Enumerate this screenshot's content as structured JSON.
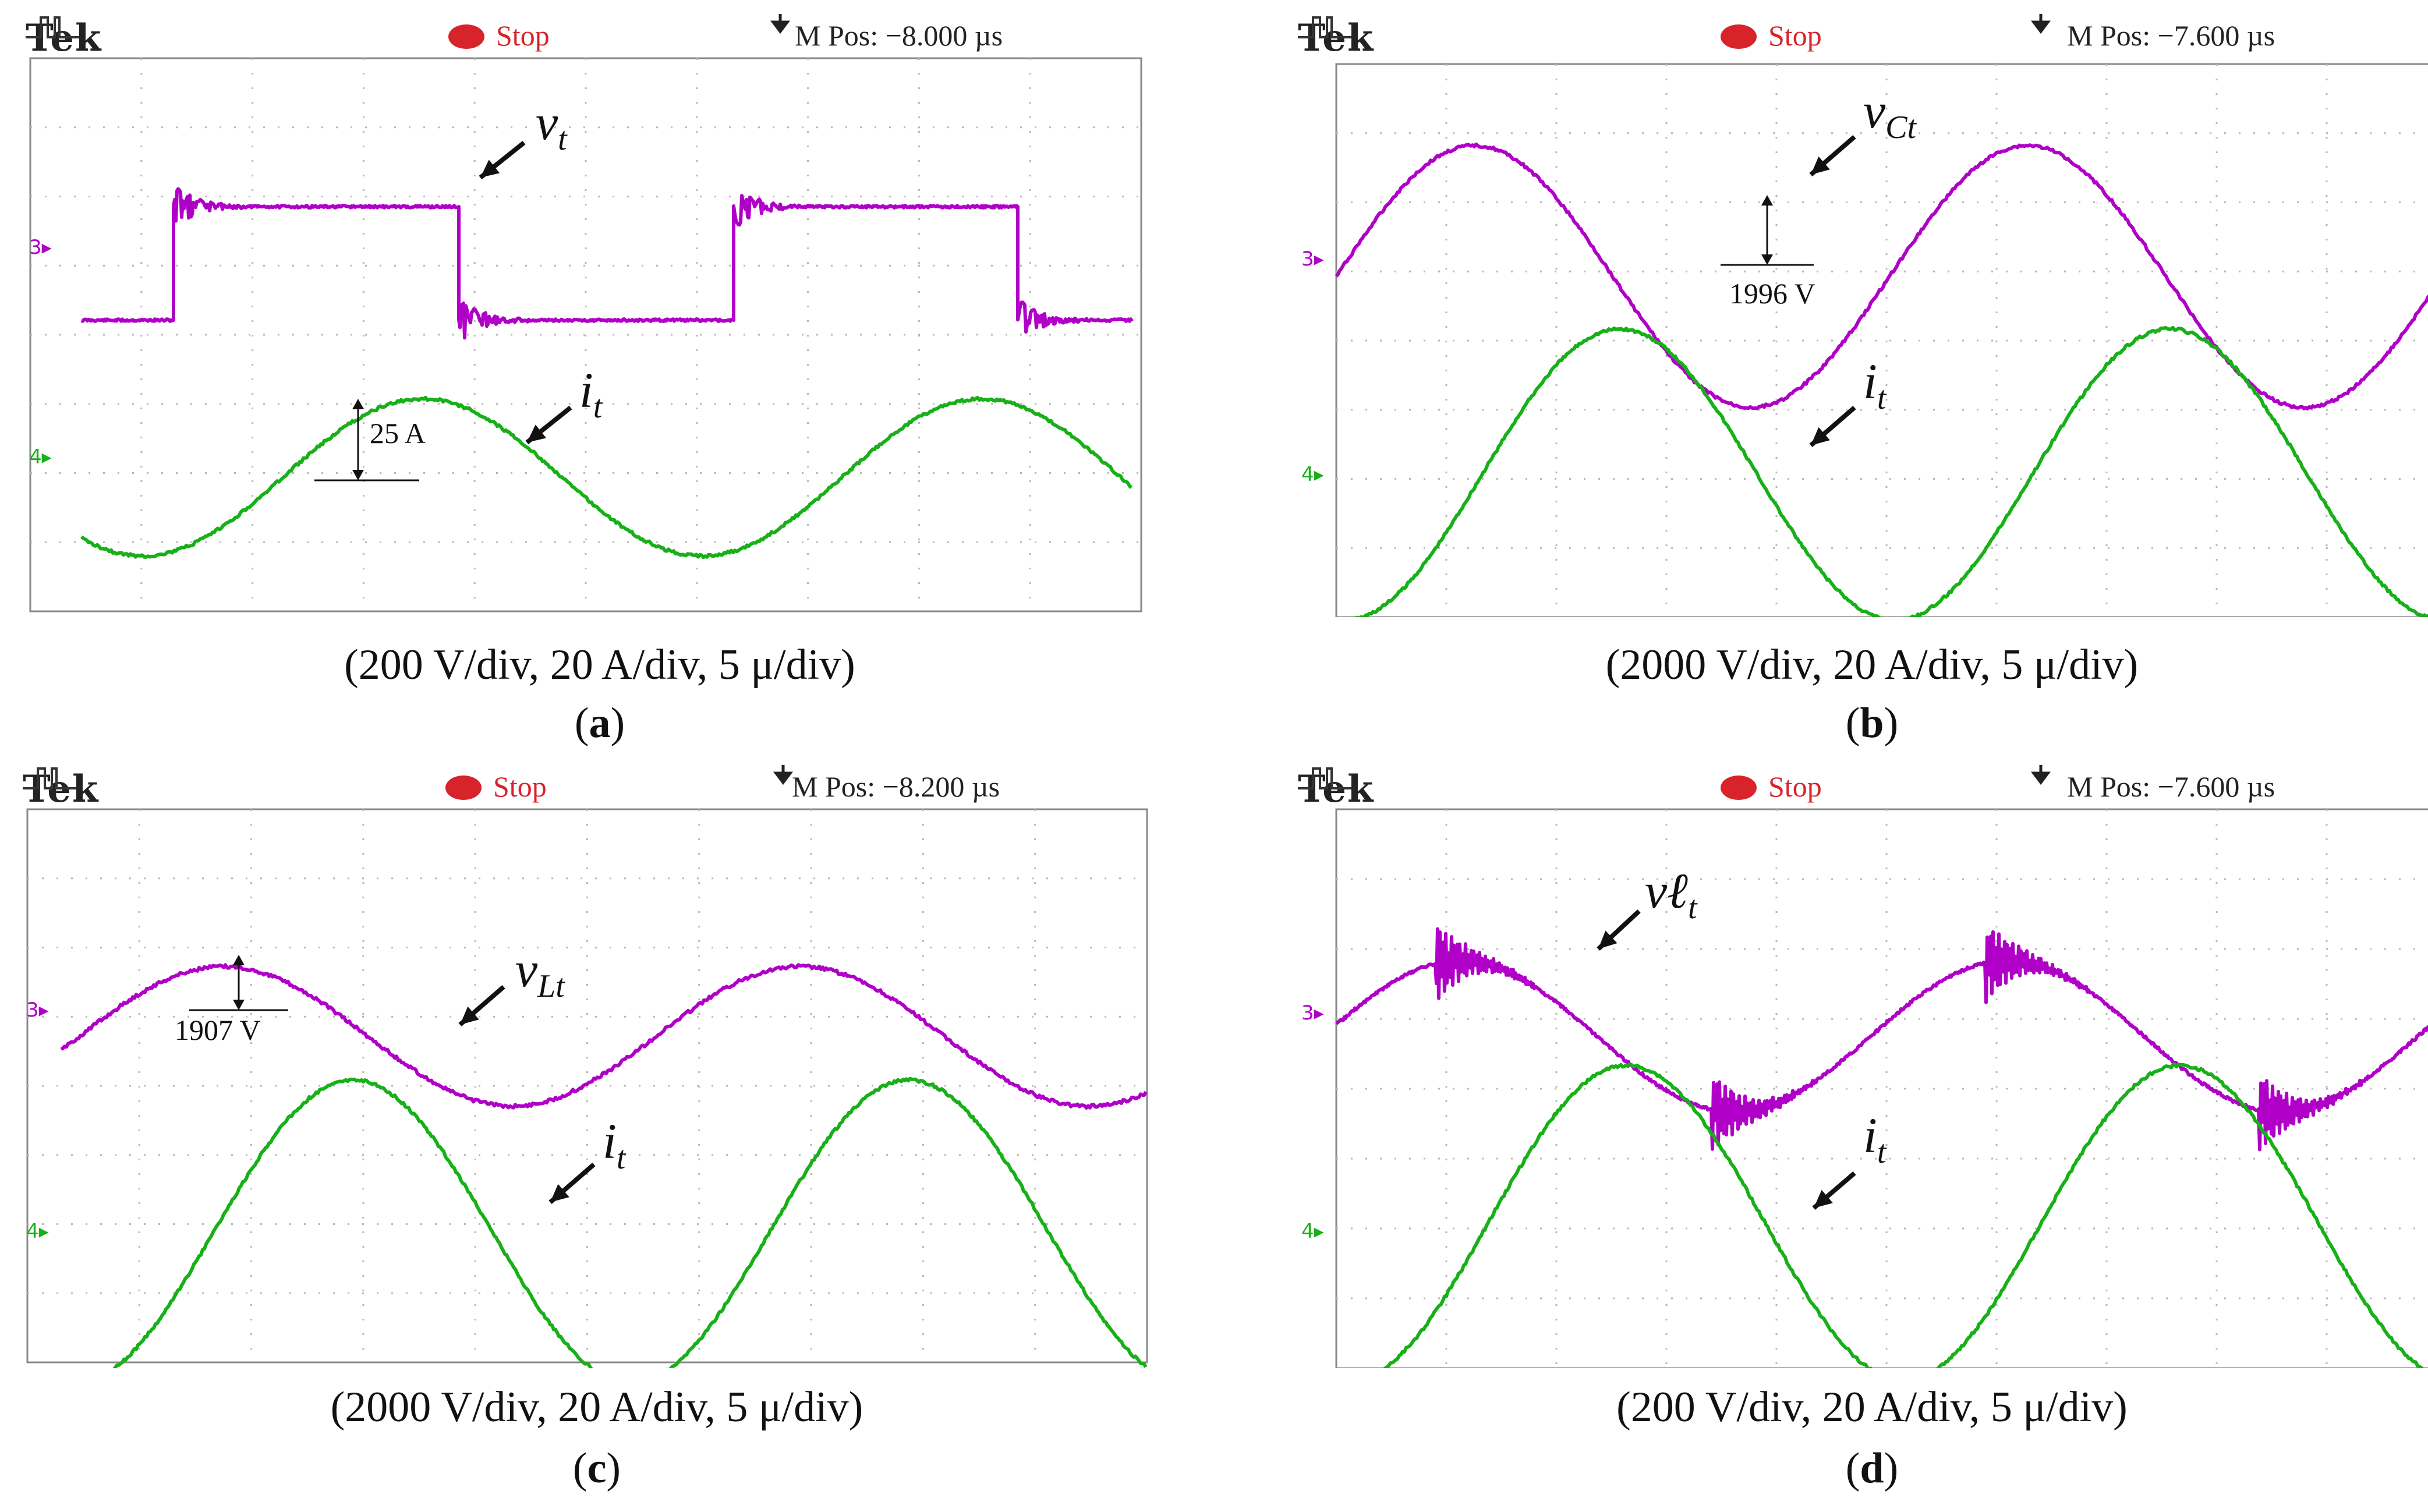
{
  "header": {
    "brand": "Tek",
    "status": "Stop"
  },
  "panels": [
    {
      "id": "a",
      "m_pos": "M Pos: −8.000 µs",
      "ch3_marker": "3▸",
      "ch4_marker": "4▸",
      "voltage_label": "v",
      "voltage_subscript": "t",
      "current_label": "i",
      "current_subscript": "t",
      "annotation": "25 A",
      "caption": "(200 V/div, 20 A/div, 5 μ/div)",
      "sublabel": "a"
    },
    {
      "id": "b",
      "m_pos": "M Pos: −7.600 µs",
      "ch3_marker": "3▸",
      "ch4_marker": "4▸",
      "voltage_label": "v",
      "voltage_subscript": "Ct",
      "current_label": "i",
      "current_subscript": "t",
      "annotation": "1996 V",
      "caption": "(2000 V/div, 20 A/div, 5 μ/div)",
      "sublabel": "b"
    },
    {
      "id": "c",
      "m_pos": "M Pos: −8.200 µs",
      "ch3_marker": "3▸",
      "ch4_marker": "4▸",
      "voltage_label": "v",
      "voltage_subscript": "Lt",
      "current_label": "i",
      "current_subscript": "t",
      "annotation": "1907 V",
      "caption": "(2000 V/div, 20 A/div, 5 μ/div)",
      "sublabel": "c"
    },
    {
      "id": "d",
      "m_pos": "M Pos: −7.600 µs",
      "ch3_marker": "3▸",
      "ch4_marker": "4▸",
      "voltage_label": "vℓ",
      "voltage_subscript": "t",
      "current_label": "i",
      "current_subscript": "t",
      "annotation": "",
      "caption": "(200 V/div, 20 A/div, 5 μ/div)",
      "sublabel": "d"
    }
  ],
  "colors": {
    "ch3": "#b000c8",
    "ch4": "#18b018",
    "stop": "#d8232a",
    "grid": "#b8b8b8"
  }
}
